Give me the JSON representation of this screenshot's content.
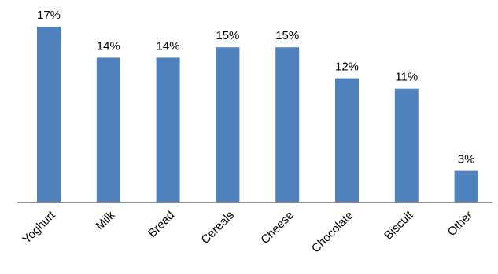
{
  "chart_data": {
    "type": "bar",
    "title": "",
    "xlabel": "",
    "ylabel": "",
    "categories": [
      "Yoghurt",
      "Milk",
      "Bread",
      "Cereals",
      "Cheese",
      "Chocolate",
      "Biscuit",
      "Other"
    ],
    "values": [
      17,
      14,
      14,
      15,
      15,
      12,
      11,
      3
    ],
    "data_labels": [
      "17%",
      "14%",
      "14%",
      "15%",
      "15%",
      "12%",
      "11%",
      "3%"
    ],
    "unit": "%",
    "ylim": [
      0,
      17
    ],
    "grid": false,
    "legend": "none",
    "bar_color": "#4f81bd"
  }
}
